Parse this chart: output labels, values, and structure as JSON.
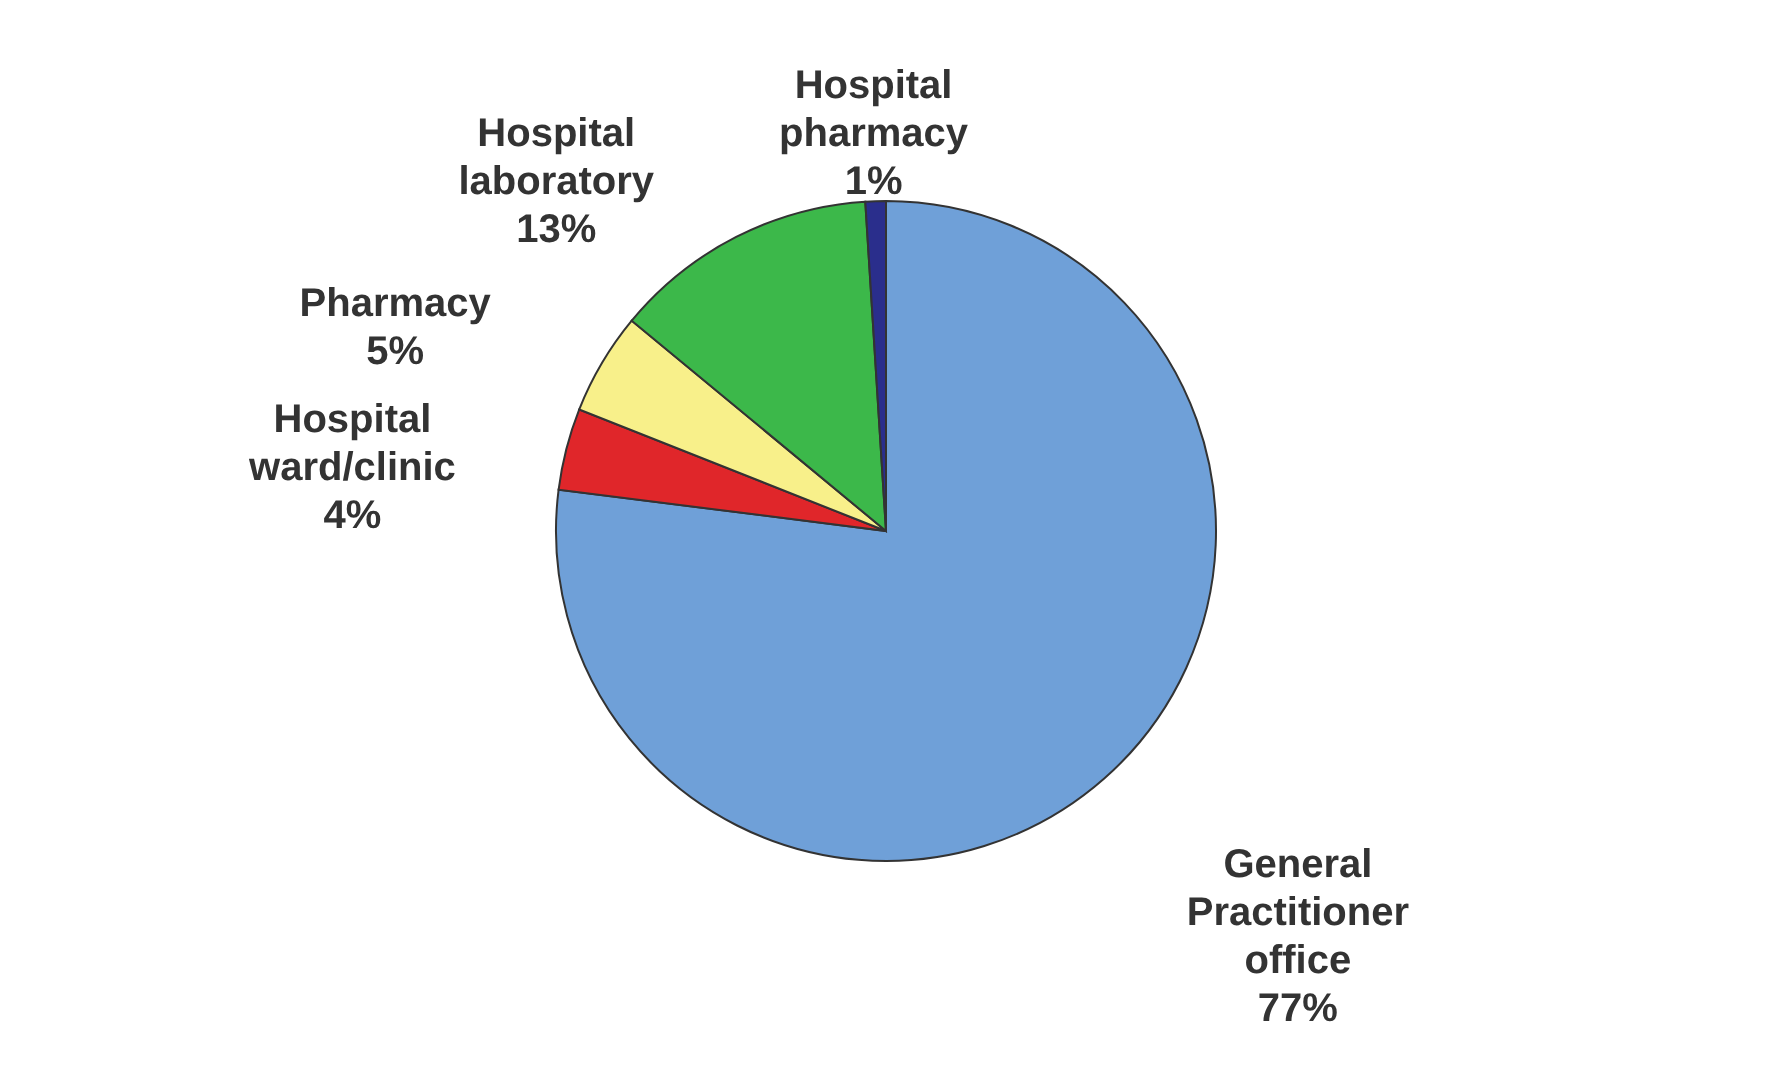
{
  "chart_data": {
    "type": "pie",
    "categories": [
      "General Practitioner office",
      "Hospital ward/clinic",
      "Pharmacy",
      "Hospital laboratory",
      "Hospital pharmacy"
    ],
    "values": [
      77,
      4,
      5,
      13,
      1
    ],
    "value_labels": [
      "77%",
      "4%",
      "5%",
      "13%",
      "1%"
    ],
    "colors": [
      "#6fa0d8",
      "#e0262a",
      "#f8f08a",
      "#3cb84a",
      "#2a2e8c"
    ],
    "legend": false
  }
}
